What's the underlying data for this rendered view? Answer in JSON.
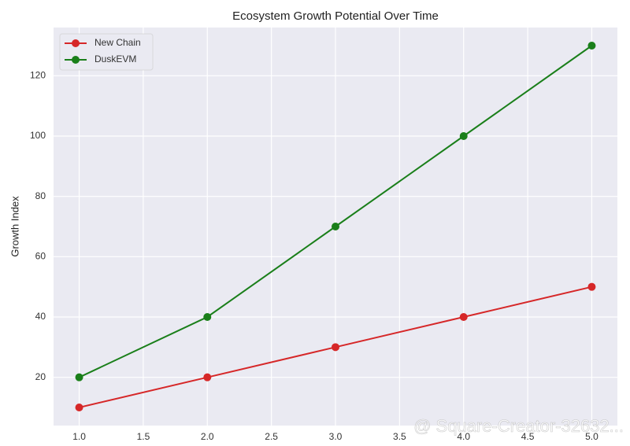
{
  "chart_data": {
    "type": "line",
    "title": "Ecosystem Growth Potential Over Time",
    "y_label": "Growth Index",
    "x": [
      1,
      2,
      3,
      4,
      5
    ],
    "series": [
      {
        "name": "New Chain",
        "color": "#d62728",
        "values": [
          10,
          20,
          30,
          40,
          50
        ]
      },
      {
        "name": "DuskEVM",
        "color": "#1a7f1a",
        "values": [
          20,
          40,
          70,
          100,
          130
        ]
      }
    ],
    "xlim": [
      0.8,
      5.2
    ],
    "xticks": [
      {
        "value": 1,
        "label": "1.0"
      },
      {
        "value": 1.5,
        "label": "1.5"
      },
      {
        "value": 2,
        "label": "2.0"
      },
      {
        "value": 2.5,
        "label": "2.5"
      },
      {
        "value": 3,
        "label": "3.0"
      },
      {
        "value": 3.5,
        "label": "3.5"
      },
      {
        "value": 4,
        "label": "4.0"
      },
      {
        "value": 4.5,
        "label": "4.5"
      },
      {
        "value": 5,
        "label": "5.0"
      }
    ],
    "ylim": [
      4,
      136
    ],
    "yticks": [
      20,
      40,
      60,
      80,
      100,
      120
    ],
    "grid": true,
    "legend": "upper-left"
  },
  "watermark": "@ Square-Creator-32632..."
}
